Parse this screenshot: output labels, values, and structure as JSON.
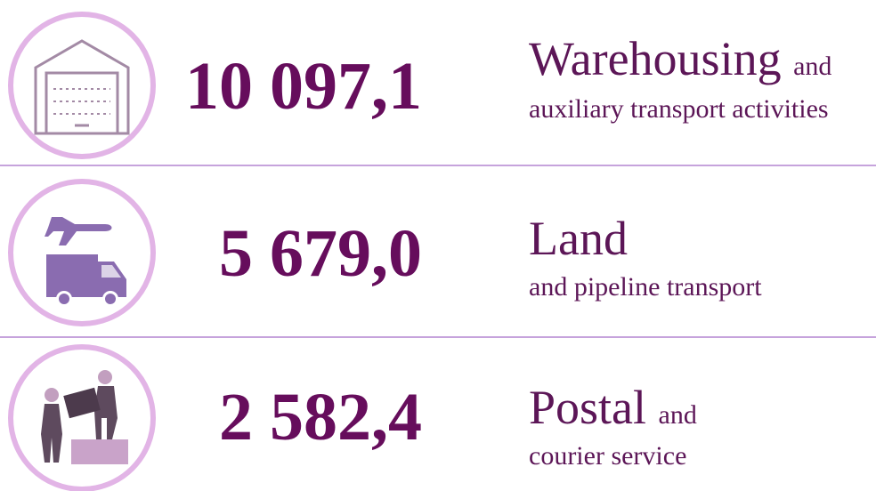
{
  "rows": [
    {
      "value": "10 097,1",
      "title": "Warehousing",
      "title_suffix": "and",
      "subtitle": "auxiliary transport activities"
    },
    {
      "value": "5 679,0",
      "title": "Land",
      "subtitle": "and pipeline transport"
    },
    {
      "value": "2 582,4",
      "title": "Postal",
      "title_suffix": "and",
      "subtitle": "courier service"
    }
  ]
}
